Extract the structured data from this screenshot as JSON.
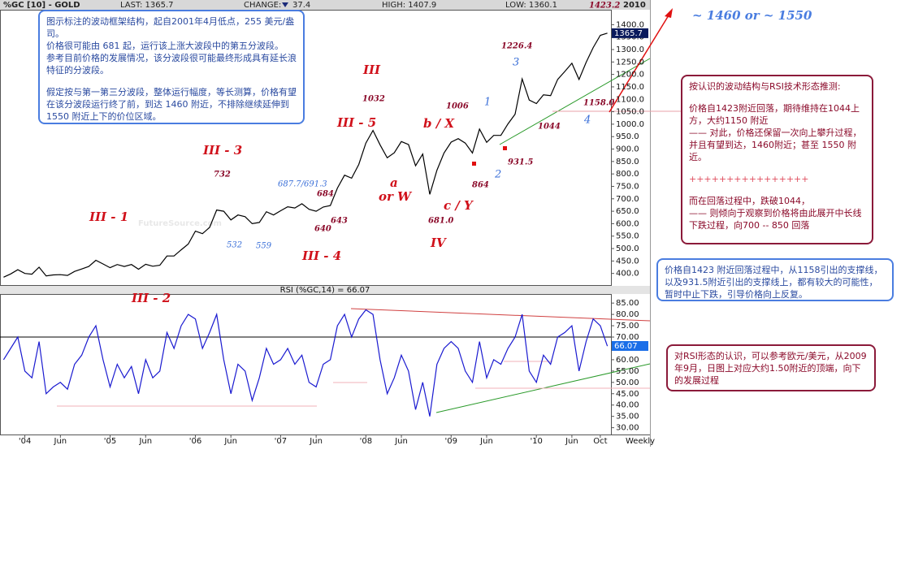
{
  "header": {
    "symbol": "%GC [10] - GOLD",
    "last": "LAST: 1365.7",
    "change": "CHANGE:",
    "change_value": "37.4",
    "high": "HIGH: 1407.9",
    "low": "LOW: 1360.1",
    "year": "2010"
  },
  "watermark": "FutureSource.com",
  "chart_data": [
    {
      "type": "line",
      "color": "#000000",
      "values": [
        385,
        398,
        415,
        400,
        397,
        425,
        390,
        394,
        395,
        392,
        408,
        418,
        428,
        453,
        438,
        423,
        436,
        428,
        436,
        417,
        437,
        429,
        433,
        470,
        470,
        495,
        518,
        570,
        560,
        585,
        655,
        650,
        615,
        635,
        628,
        600,
        605,
        648,
        635,
        652,
        668,
        663,
        680,
        658,
        650,
        667,
        673,
        743,
        795,
        783,
        838,
        924,
        975,
        917,
        865,
        885,
        930,
        918,
        833,
        880,
        718,
        815,
        884,
        928,
        942,
        924,
        884,
        980,
        927,
        955,
        955,
        1001,
        1040,
        1182,
        1097,
        1083,
        1118,
        1115,
        1180,
        1212,
        1245,
        1180,
        1248,
        1308,
        1357,
        1366
      ],
      "ylim": [
        350,
        1460
      ],
      "yticks": [
        {
          "value": 400,
          "label": "400.0"
        },
        {
          "value": 450,
          "label": "450.0"
        },
        {
          "value": 500,
          "label": "500.0"
        },
        {
          "value": 550,
          "label": "550.0"
        },
        {
          "value": 600,
          "label": "600.0"
        },
        {
          "value": 650,
          "label": "650.0"
        },
        {
          "value": 700,
          "label": "700.0"
        },
        {
          "value": 750,
          "label": "750.0"
        },
        {
          "value": 800,
          "label": "800.0"
        },
        {
          "value": 850,
          "label": "850.0"
        },
        {
          "value": 900,
          "label": "900.0"
        },
        {
          "value": 950,
          "label": "950.0"
        },
        {
          "value": 1000,
          "label": "1000.0"
        },
        {
          "value": 1050,
          "label": "1050.0"
        },
        {
          "value": 1100,
          "label": "1100.0"
        },
        {
          "value": 1150,
          "label": "1150.0"
        },
        {
          "value": 1200,
          "label": "1200.0"
        },
        {
          "value": 1250,
          "label": "1250.0"
        },
        {
          "value": 1300,
          "label": "1300.0"
        },
        {
          "value": 1350,
          "label": "1350.0"
        },
        {
          "value": 1400,
          "label": "1400.0"
        }
      ],
      "last_value": 1365.7,
      "last_color": "#0a1a5c"
    },
    {
      "type": "line",
      "title": "RSI (%GC,14) = 66.07",
      "color": "#1a1ad0",
      "xlabel": "Weekly",
      "categories": [
        null,
        null,
        null,
        "'04",
        null,
        null,
        null,
        null,
        "Jun",
        null,
        null,
        null,
        null,
        null,
        null,
        "'05",
        null,
        null,
        null,
        null,
        "Jun",
        null,
        null,
        null,
        null,
        null,
        null,
        "'06",
        null,
        null,
        null,
        null,
        "Jun",
        null,
        null,
        null,
        null,
        null,
        null,
        "'07",
        null,
        null,
        null,
        null,
        "Jun",
        null,
        null,
        null,
        null,
        null,
        null,
        "'08",
        null,
        null,
        null,
        null,
        "Jun",
        null,
        null,
        null,
        null,
        null,
        null,
        "'09",
        null,
        null,
        null,
        null,
        "Jun",
        null,
        null,
        null,
        null,
        null,
        null,
        "'10",
        null,
        null,
        null,
        null,
        "Jun",
        null,
        null,
        null,
        "Oct",
        null
      ],
      "values": [
        60,
        65,
        70,
        55,
        52,
        68,
        45,
        48,
        50,
        47,
        58,
        62,
        70,
        75,
        60,
        48,
        58,
        52,
        57,
        45,
        60,
        52,
        55,
        72,
        65,
        75,
        80,
        78,
        65,
        72,
        80,
        60,
        45,
        58,
        55,
        42,
        52,
        65,
        58,
        60,
        65,
        58,
        62,
        50,
        48,
        58,
        60,
        75,
        80,
        70,
        78,
        82,
        80,
        60,
        45,
        52,
        62,
        55,
        38,
        50,
        35,
        58,
        65,
        68,
        65,
        55,
        50,
        68,
        52,
        60,
        58,
        65,
        70,
        80,
        55,
        50,
        62,
        58,
        70,
        72,
        75,
        55,
        68,
        78,
        75,
        66
      ],
      "ylim": [
        27,
        89
      ],
      "yticks": [
        {
          "value": 30,
          "label": "30.00"
        },
        {
          "value": 35,
          "label": "35.00"
        },
        {
          "value": 40,
          "label": "40.00"
        },
        {
          "value": 45,
          "label": "45.00"
        },
        {
          "value": 50,
          "label": "50.00"
        },
        {
          "value": 55,
          "label": "55.00"
        },
        {
          "value": 60,
          "label": "60.00"
        },
        {
          "value": 65,
          "label": "65.00"
        },
        {
          "value": 70,
          "label": "70.00"
        },
        {
          "value": 75,
          "label": "75.00"
        },
        {
          "value": 80,
          "label": "80.00"
        },
        {
          "value": 85,
          "label": "85.00"
        }
      ],
      "reference": 70,
      "last_value": 66.07,
      "last_color": "#1a6ee8"
    }
  ],
  "annotations": [
    "III - 1",
    "III - 2",
    "III - 3",
    "III - 4",
    "III - 5",
    "III",
    "IV",
    "732",
    "532",
    "559",
    "687.7/691.3",
    "684",
    "643",
    "640",
    "1032",
    "a",
    "or W",
    "b / X",
    "1006",
    "c / Y",
    "681.0",
    "864",
    "931.5",
    "1",
    "2",
    "3",
    "4",
    "1226.4",
    "1044",
    "1158.0",
    "1423.2",
    "~ 1460  or ~ 1550"
  ],
  "notes": [
    {
      "paragraphs": [
        "图示标注的波动框架结构，起自2001年4月低点，255 美元/盎司。",
        "价格很可能由 681 起，运行该上涨大波段中的第五分波段。",
        "参考目前价格的发展情况，该分波段很可能最终形成具有延长浪特征的分波段。",
        "假定按与第一第三分波段，整体运行幅度，等长测算，价格有望在该分波段运行终了前，到达 1460 附近，不排除继续延伸到 1550 附近上下的价位区域。"
      ]
    },
    {
      "paragraphs": [
        "按认识的波动结构与RSI技术形态推测:",
        "价格自1423附近回落，期待维持在1044上方，大约1150 附近",
        "—— 对此，价格还保留一次向上攀升过程，并且有望到达，1460附近；甚至 1550 附近。",
        "++++++++++++++++",
        "而在回落过程中，跌破1044，",
        "—— 则倾向于观察到价格将由此展开中长线下跌过程，向700 -- 850 回落"
      ]
    },
    {
      "paragraphs": [
        "价格自1423 附近回落过程中，从1158引出的支撑线，以及931.5附近引出的支撑线上，都有较大的可能性，暂时中止下跌，引导价格向上反复。"
      ]
    },
    {
      "paragraphs": [
        "对RSI形态的认识，可以参考欧元/美元，从2009年9月，日图上对应大约1.50附近的顶端，向下的发展过程"
      ]
    }
  ]
}
